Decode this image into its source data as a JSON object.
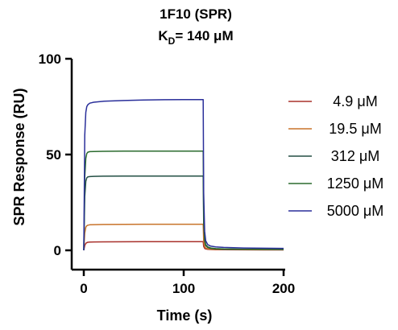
{
  "chart_data": {
    "type": "line",
    "title": "1F10  (SPR)",
    "subtitle_prefix": "K",
    "subtitle_subscript": "D",
    "subtitle_suffix": "= 140 μM",
    "xlabel": "Time (s)",
    "ylabel": "SPR Response (RU)",
    "xlim": [
      0,
      200
    ],
    "ylim": [
      0,
      100
    ],
    "xticks": [
      0,
      100,
      200
    ],
    "xtick_labels": [
      "0",
      "100",
      "200"
    ],
    "yticks": [
      0,
      50,
      100
    ],
    "ytick_labels": [
      "0",
      "50",
      "100"
    ],
    "grid": false,
    "legend_position": "right",
    "series": [
      {
        "name": "4.9 μM",
        "color": "#a8302b",
        "x": [
          0,
          1,
          2,
          3,
          4,
          6,
          10,
          20,
          40,
          60,
          80,
          100,
          119.5,
          120,
          121,
          122,
          124,
          127,
          132,
          140,
          160,
          180,
          200
        ],
        "y": [
          0,
          2.5,
          3.6,
          4.0,
          4.2,
          4.3,
          4.35,
          4.4,
          4.45,
          4.5,
          4.5,
          4.5,
          4.5,
          2.0,
          1.0,
          0.7,
          0.5,
          0.4,
          0.35,
          0.3,
          0.25,
          0.2,
          0.2
        ]
      },
      {
        "name": "19.5 μM",
        "color": "#c8732a",
        "x": [
          0,
          1,
          2,
          3,
          4,
          6,
          10,
          20,
          40,
          60,
          80,
          100,
          119.5,
          120,
          121,
          122,
          124,
          127,
          132,
          140,
          160,
          180,
          200
        ],
        "y": [
          0,
          9,
          12,
          12.8,
          13.1,
          13.3,
          13.4,
          13.5,
          13.55,
          13.6,
          13.6,
          13.6,
          13.6,
          5.0,
          2.0,
          1.2,
          0.8,
          0.6,
          0.5,
          0.45,
          0.4,
          0.35,
          0.3
        ]
      },
      {
        "name": "312 μM",
        "color": "#234f44",
        "x": [
          0,
          1,
          2,
          3,
          4,
          6,
          10,
          20,
          40,
          60,
          80,
          100,
          119.5,
          120,
          121,
          122,
          124,
          127,
          132,
          140,
          160,
          180,
          200
        ],
        "y": [
          0,
          28,
          36,
          37.8,
          38.3,
          38.5,
          38.6,
          38.7,
          38.8,
          38.8,
          38.8,
          38.8,
          38.8,
          14.0,
          5.0,
          2.5,
          1.5,
          1.0,
          0.8,
          0.6,
          0.5,
          0.45,
          0.4
        ]
      },
      {
        "name": "1250 μM",
        "color": "#2b6b2e",
        "x": [
          0,
          1,
          2,
          3,
          4,
          6,
          10,
          20,
          40,
          60,
          80,
          100,
          119.5,
          120,
          121,
          122,
          124,
          127,
          132,
          140,
          160,
          180,
          200
        ],
        "y": [
          0,
          38,
          48,
          50.5,
          51.2,
          51.5,
          51.6,
          51.7,
          51.8,
          51.8,
          51.8,
          51.8,
          51.8,
          18.0,
          6.0,
          3.0,
          1.8,
          1.2,
          0.9,
          0.7,
          0.6,
          0.5,
          0.5
        ]
      },
      {
        "name": "5000 μM",
        "color": "#2a2f9a",
        "x": [
          0,
          1,
          2,
          3,
          4,
          6,
          10,
          20,
          40,
          60,
          80,
          100,
          119.5,
          120,
          121,
          122,
          124,
          127,
          132,
          140,
          160,
          180,
          200
        ],
        "y": [
          0,
          60,
          72,
          75,
          76,
          76.8,
          77.3,
          77.8,
          78.2,
          78.5,
          78.6,
          78.7,
          78.7,
          30.0,
          10.0,
          5.0,
          3.0,
          2.2,
          1.8,
          1.5,
          1.2,
          1.1,
          1.0
        ]
      }
    ]
  }
}
